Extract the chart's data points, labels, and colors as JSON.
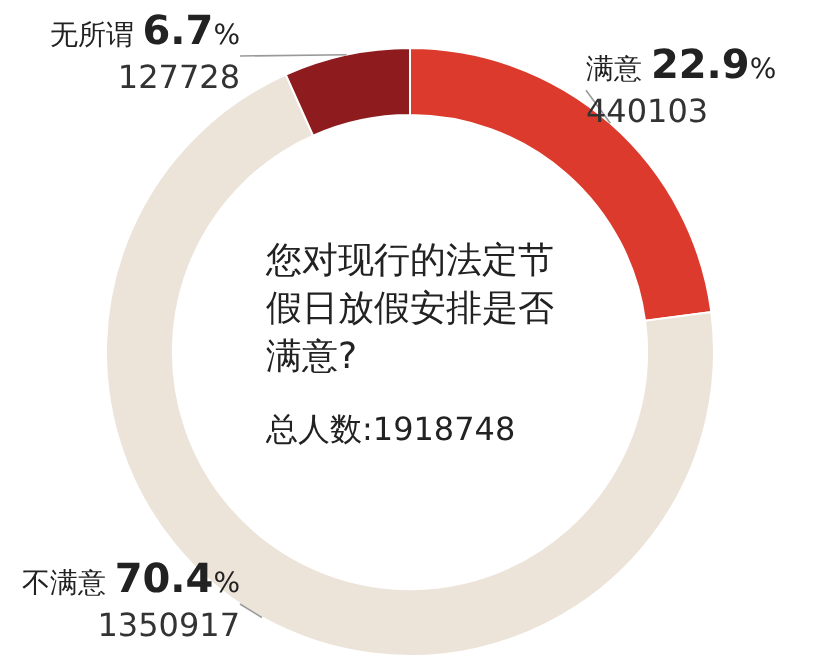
{
  "chart_data": {
    "type": "donut",
    "title": "您对现行的法定节假日放假安排是否满意?",
    "categories": [
      "满意",
      "不满意",
      "无所谓"
    ],
    "values": [
      22.9,
      70.4,
      6.7
    ],
    "colors": [
      "#dc3a2c",
      "#ede4d9",
      "#8e1b1e"
    ],
    "value_labels": [
      "22.9%",
      "70.4%",
      "6.7%"
    ],
    "annotations": [
      "440103",
      "1350917",
      "127728",
      "总人数:1918748"
    ]
  }
}
